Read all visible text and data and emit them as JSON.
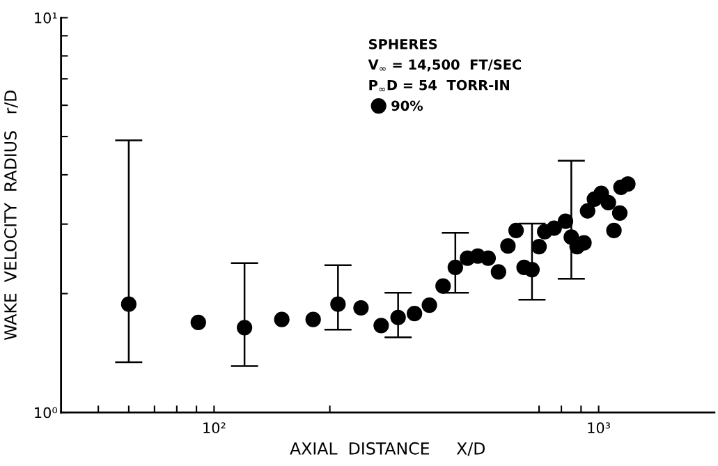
{
  "chart_data": {
    "type": "scatter",
    "xlabel": "AXIAL  DISTANCE     X/D",
    "ylabel": "WAKE  VELOCITY  RADIUS   r/D",
    "annotations": [
      "SPHERES",
      "V$_{∞}$ = 14,500  FT/SEC",
      "P$_{∞}$D = 54  TORR-IN"
    ],
    "log": "xy",
    "xlim": [
      40,
      2000
    ],
    "ylim": [
      1,
      10
    ],
    "xticks": [
      {
        "value": 50,
        "label": null
      },
      {
        "value": 60,
        "label": null
      },
      {
        "value": 70,
        "label": null
      },
      {
        "value": 80,
        "label": null
      },
      {
        "value": 90,
        "label": null
      },
      {
        "value": 100,
        "label": "10²"
      },
      {
        "value": 200,
        "label": null
      },
      {
        "value": 700,
        "label": null
      },
      {
        "value": 800,
        "label": null
      },
      {
        "value": 900,
        "label": null
      },
      {
        "value": 1000,
        "label": "10³"
      }
    ],
    "yticks": [
      {
        "value": 1,
        "label": "10⁰"
      },
      {
        "value": 2,
        "label": null
      },
      {
        "value": 3,
        "label": null
      },
      {
        "value": 4,
        "label": null
      },
      {
        "value": 5,
        "label": null
      },
      {
        "value": 6,
        "label": null
      },
      {
        "value": 7,
        "label": null
      },
      {
        "value": 8,
        "label": null
      },
      {
        "value": 9,
        "label": null
      },
      {
        "value": 10,
        "label": "10¹"
      }
    ],
    "grid": false,
    "legend": "top",
    "marker": "circle",
    "series": [
      {
        "name": "90%",
        "color": "#000000",
        "x": [
          60,
          91,
          120,
          150,
          181,
          210,
          241,
          272,
          301,
          332,
          363,
          394,
          424,
          456,
          485,
          516,
          549,
          581,
          610,
          640,
          671,
          700,
          724,
          766,
          820,
          849,
          879,
          916,
          936,
          975,
          1016,
          1060,
          1096,
          1135,
          1143,
          1191
        ],
        "values": [
          1.88,
          1.69,
          1.64,
          1.72,
          1.72,
          1.88,
          1.84,
          1.66,
          1.74,
          1.78,
          1.87,
          2.09,
          2.33,
          2.46,
          2.49,
          2.46,
          2.27,
          2.64,
          2.89,
          2.33,
          2.3,
          2.63,
          2.87,
          2.93,
          3.05,
          2.78,
          2.63,
          2.69,
          3.24,
          3.47,
          3.59,
          3.4,
          2.89,
          3.2,
          3.72,
          3.79
        ],
        "errors": [
          [
            1.34,
            4.89
          ],
          null,
          [
            1.31,
            2.39
          ],
          null,
          null,
          [
            1.62,
            2.36
          ],
          null,
          null,
          [
            1.55,
            2.01
          ],
          null,
          null,
          null,
          [
            2.01,
            2.85
          ],
          null,
          null,
          null,
          null,
          null,
          null,
          null,
          [
            1.93,
            3.01
          ],
          null,
          null,
          null,
          null,
          [
            2.18,
            4.34
          ],
          null,
          null,
          null,
          null,
          null,
          null,
          null,
          null,
          null,
          null
        ]
      }
    ]
  }
}
